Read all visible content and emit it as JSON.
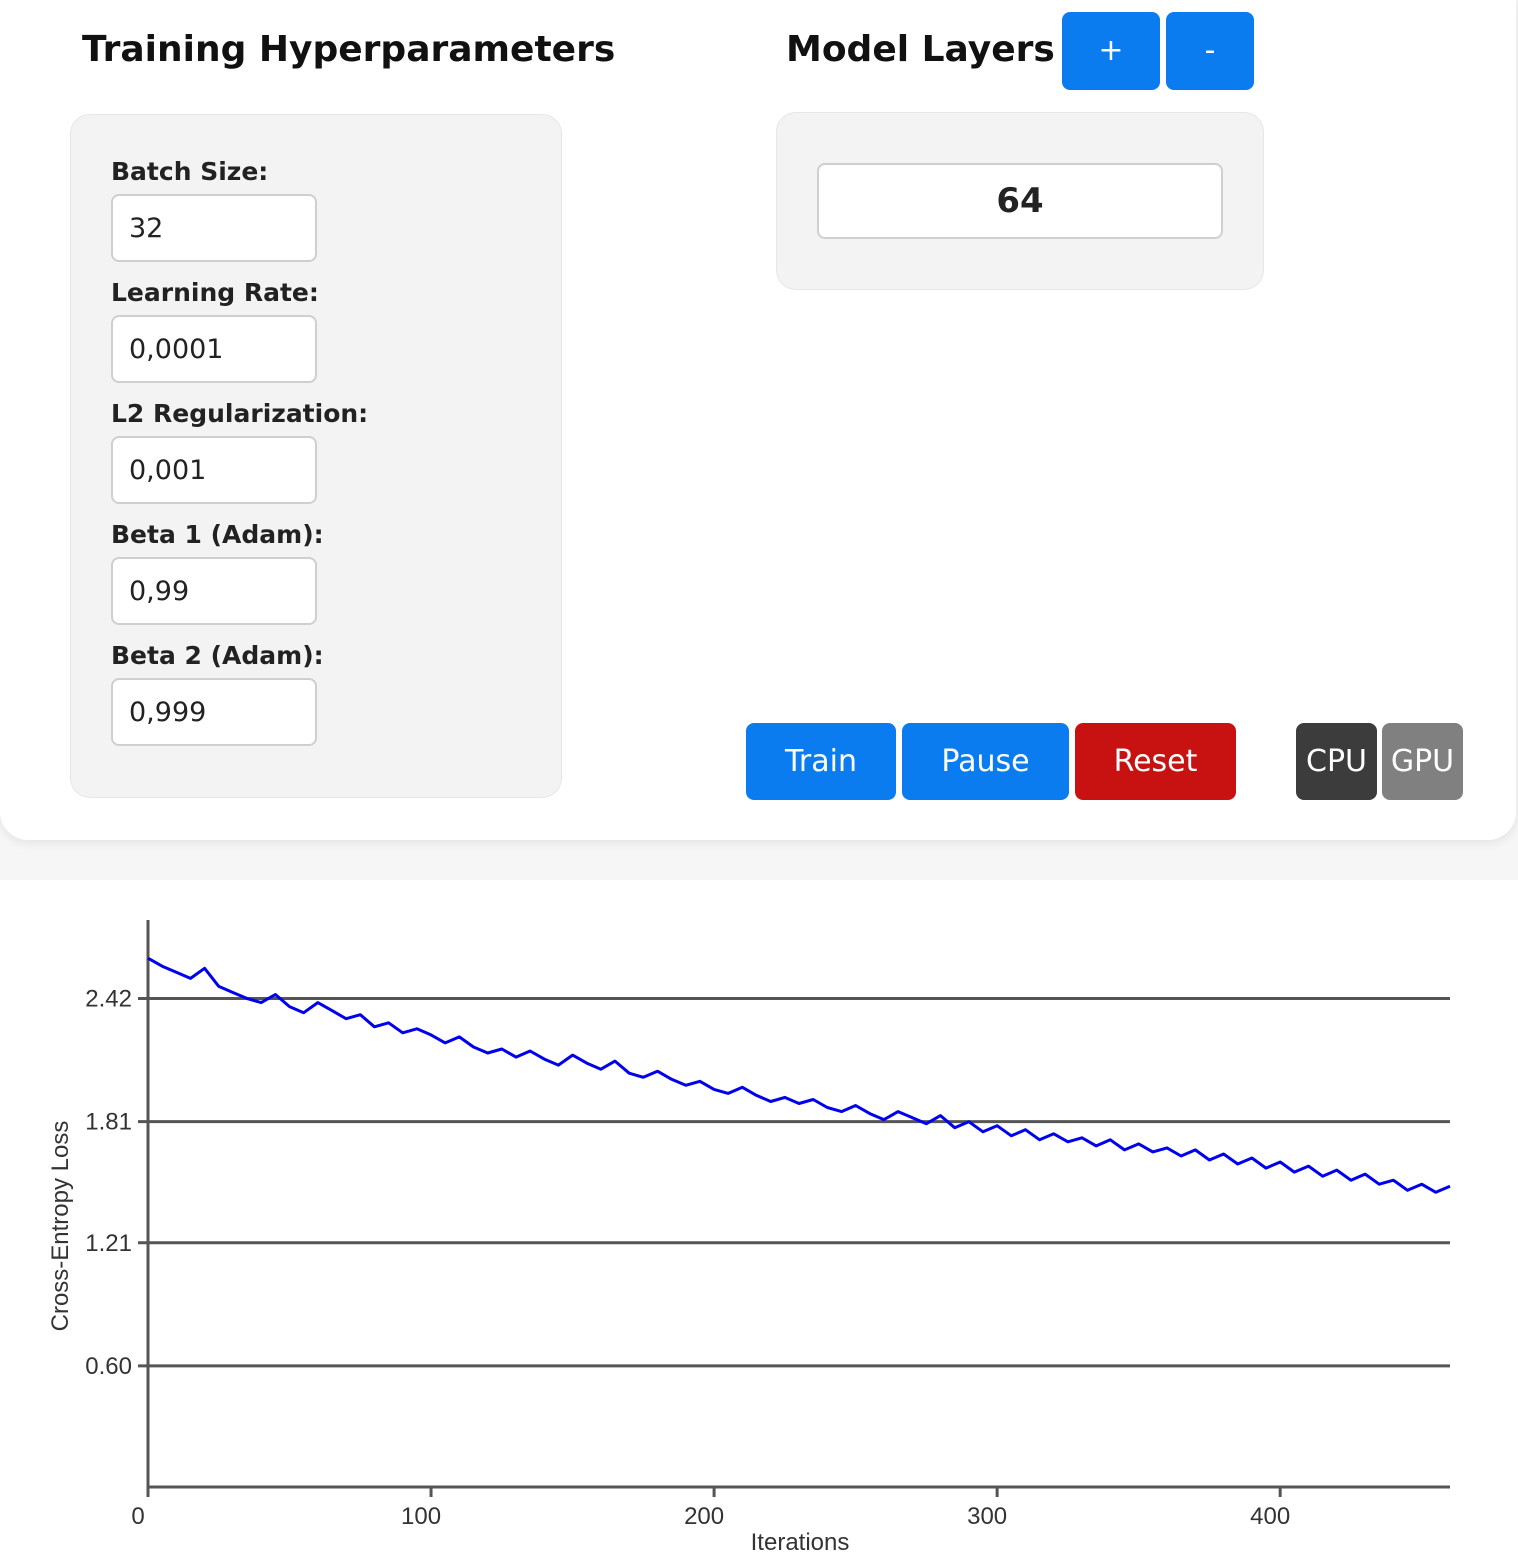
{
  "hyperparameters": {
    "title": "Training Hyperparameters",
    "fields": [
      {
        "label": "Batch Size:",
        "value": "32"
      },
      {
        "label": "Learning Rate:",
        "value": "0,0001"
      },
      {
        "label": "L2 Regularization:",
        "value": "0,001"
      },
      {
        "label": "Beta 1 (Adam):",
        "value": "0,99"
      },
      {
        "label": "Beta 2 (Adam):",
        "value": "0,999"
      }
    ]
  },
  "model_layers": {
    "title": "Model Layers",
    "add_label": "+",
    "remove_label": "-",
    "value": "64"
  },
  "controls": {
    "train_label": "Train",
    "pause_label": "Pause",
    "reset_label": "Reset",
    "cpu_label": "CPU",
    "gpu_label": "GPU",
    "selected_device": "CPU"
  },
  "colors": {
    "primary": "#0a7cf0",
    "danger": "#c81212",
    "device_active": "#3c3c3c",
    "device_inactive": "#808080",
    "series_line": "#0000ee"
  },
  "chart_data": {
    "type": "line",
    "title": "",
    "xlabel": "Iterations",
    "ylabel": "Cross-Entropy Loss",
    "xlim": [
      0,
      460
    ],
    "ylim": [
      0,
      2.71
    ],
    "x_ticks": [
      0,
      100,
      200,
      300,
      400
    ],
    "x_tick_labels": [
      "0",
      "100",
      "200",
      "300",
      "400"
    ],
    "y_ticks": [
      0.6,
      1.21,
      1.81,
      2.42
    ],
    "y_tick_labels": [
      "0.60",
      "1.21",
      "1.81",
      "2.42"
    ],
    "grid": "horizontal",
    "series": [
      {
        "x": [
          0,
          5,
          10,
          15,
          20,
          25,
          30,
          35,
          40,
          45,
          50,
          55,
          60,
          65,
          70,
          75,
          80,
          85,
          90,
          95,
          100,
          105,
          110,
          115,
          120,
          125,
          130,
          135,
          140,
          145,
          150,
          155,
          160,
          165,
          170,
          175,
          180,
          185,
          190,
          195,
          200,
          205,
          210,
          215,
          220,
          225,
          230,
          235,
          240,
          245,
          250,
          255,
          260,
          265,
          270,
          275,
          280,
          285,
          290,
          295,
          300,
          305,
          310,
          315,
          320,
          325,
          330,
          335,
          340,
          345,
          350,
          355,
          360,
          365,
          370,
          375,
          380,
          385,
          390,
          395,
          400,
          405,
          410,
          415,
          420,
          425,
          430,
          435,
          440,
          445,
          450,
          455,
          460
        ],
        "values": [
          2.62,
          2.58,
          2.55,
          2.52,
          2.57,
          2.48,
          2.45,
          2.42,
          2.4,
          2.44,
          2.38,
          2.35,
          2.4,
          2.36,
          2.32,
          2.34,
          2.28,
          2.3,
          2.25,
          2.27,
          2.24,
          2.2,
          2.23,
          2.18,
          2.15,
          2.17,
          2.13,
          2.16,
          2.12,
          2.09,
          2.14,
          2.1,
          2.07,
          2.11,
          2.05,
          2.03,
          2.06,
          2.02,
          1.99,
          2.01,
          1.97,
          1.95,
          1.98,
          1.94,
          1.91,
          1.93,
          1.9,
          1.92,
          1.88,
          1.86,
          1.89,
          1.85,
          1.82,
          1.86,
          1.83,
          1.8,
          1.84,
          1.78,
          1.81,
          1.76,
          1.79,
          1.74,
          1.77,
          1.72,
          1.75,
          1.71,
          1.73,
          1.69,
          1.72,
          1.67,
          1.7,
          1.66,
          1.68,
          1.64,
          1.67,
          1.62,
          1.65,
          1.6,
          1.63,
          1.58,
          1.61,
          1.56,
          1.59,
          1.54,
          1.57,
          1.52,
          1.55,
          1.5,
          1.52,
          1.47,
          1.5,
          1.46,
          1.49
        ]
      }
    ]
  }
}
